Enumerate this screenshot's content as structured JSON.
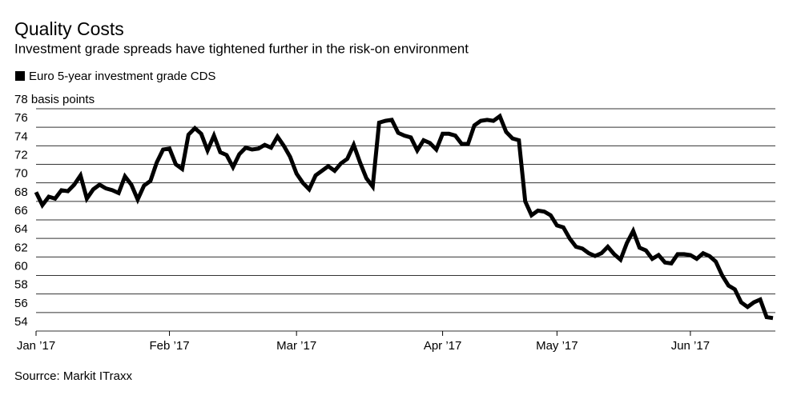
{
  "chart_data": {
    "type": "line",
    "title": "Quality Costs",
    "subtitle": "Investment grade spreads have tightened further in the risk-on environment",
    "source": "Sourrce: Markit ITraxx",
    "categories": [
      "Jan ’17",
      null,
      null,
      null,
      null,
      null,
      null,
      null,
      null,
      null,
      null,
      null,
      null,
      null,
      null,
      null,
      null,
      null,
      null,
      null,
      null,
      "Feb ’17",
      null,
      null,
      null,
      null,
      null,
      null,
      null,
      null,
      null,
      null,
      null,
      null,
      null,
      null,
      null,
      null,
      null,
      null,
      null,
      "Mar ’17",
      null,
      null,
      null,
      null,
      null,
      null,
      null,
      null,
      null,
      null,
      null,
      null,
      null,
      null,
      null,
      null,
      null,
      null,
      null,
      null,
      null,
      null,
      "Apr ’17",
      null,
      null,
      null,
      null,
      null,
      null,
      null,
      null,
      null,
      null,
      null,
      null,
      null,
      null,
      null,
      null,
      null,
      "May ’17",
      null,
      null,
      null,
      null,
      null,
      null,
      null,
      null,
      null,
      null,
      null,
      null,
      null,
      null,
      null,
      null,
      null,
      null,
      null,
      null,
      "Jun ’17",
      null,
      null,
      null,
      null,
      null,
      null,
      null,
      null,
      null,
      null,
      null,
      null,
      null
    ],
    "series": [
      {
        "name": "Euro 5-year investment grade CDS",
        "color": "#000000",
        "values": [
          69.0,
          67.6,
          68.5,
          68.3,
          69.2,
          69.1,
          69.8,
          70.8,
          68.3,
          69.3,
          69.8,
          69.4,
          69.2,
          68.9,
          70.7,
          69.8,
          68.2,
          69.7,
          70.2,
          72.2,
          73.6,
          73.7,
          72.0,
          71.5,
          75.2,
          75.9,
          75.3,
          73.5,
          75.1,
          73.3,
          73.0,
          71.7,
          73.1,
          73.8,
          73.6,
          73.7,
          74.1,
          73.8,
          75.0,
          74.0,
          72.8,
          71.0,
          70.0,
          69.3,
          70.8,
          71.3,
          71.8,
          71.3,
          72.1,
          72.6,
          74.1,
          72.2,
          70.5,
          69.6,
          76.5,
          76.7,
          76.8,
          75.4,
          75.1,
          74.9,
          73.5,
          74.6,
          74.3,
          73.6,
          75.3,
          75.3,
          75.1,
          74.2,
          74.2,
          76.2,
          76.7,
          76.8,
          76.7,
          77.2,
          75.5,
          74.8,
          74.6,
          68.0,
          66.5,
          67.0,
          66.9,
          66.5,
          65.4,
          65.2,
          64.0,
          63.1,
          62.9,
          62.4,
          62.1,
          62.4,
          63.1,
          62.3,
          61.7,
          63.5,
          64.8,
          63.0,
          62.7,
          61.8,
          62.2,
          61.4,
          61.3,
          62.3,
          62.3,
          62.2,
          61.8,
          62.4,
          62.1,
          61.5,
          60.0,
          58.9,
          58.5,
          57.1,
          56.6,
          57.1,
          57.4,
          55.5,
          55.4
        ]
      }
    ],
    "ylim": [
      54,
      78
    ],
    "yticks": [
      54,
      56,
      58,
      60,
      62,
      64,
      66,
      68,
      70,
      72,
      74,
      76,
      {
        "value": 78,
        "label": "78 basis points"
      }
    ],
    "grid": true
  }
}
